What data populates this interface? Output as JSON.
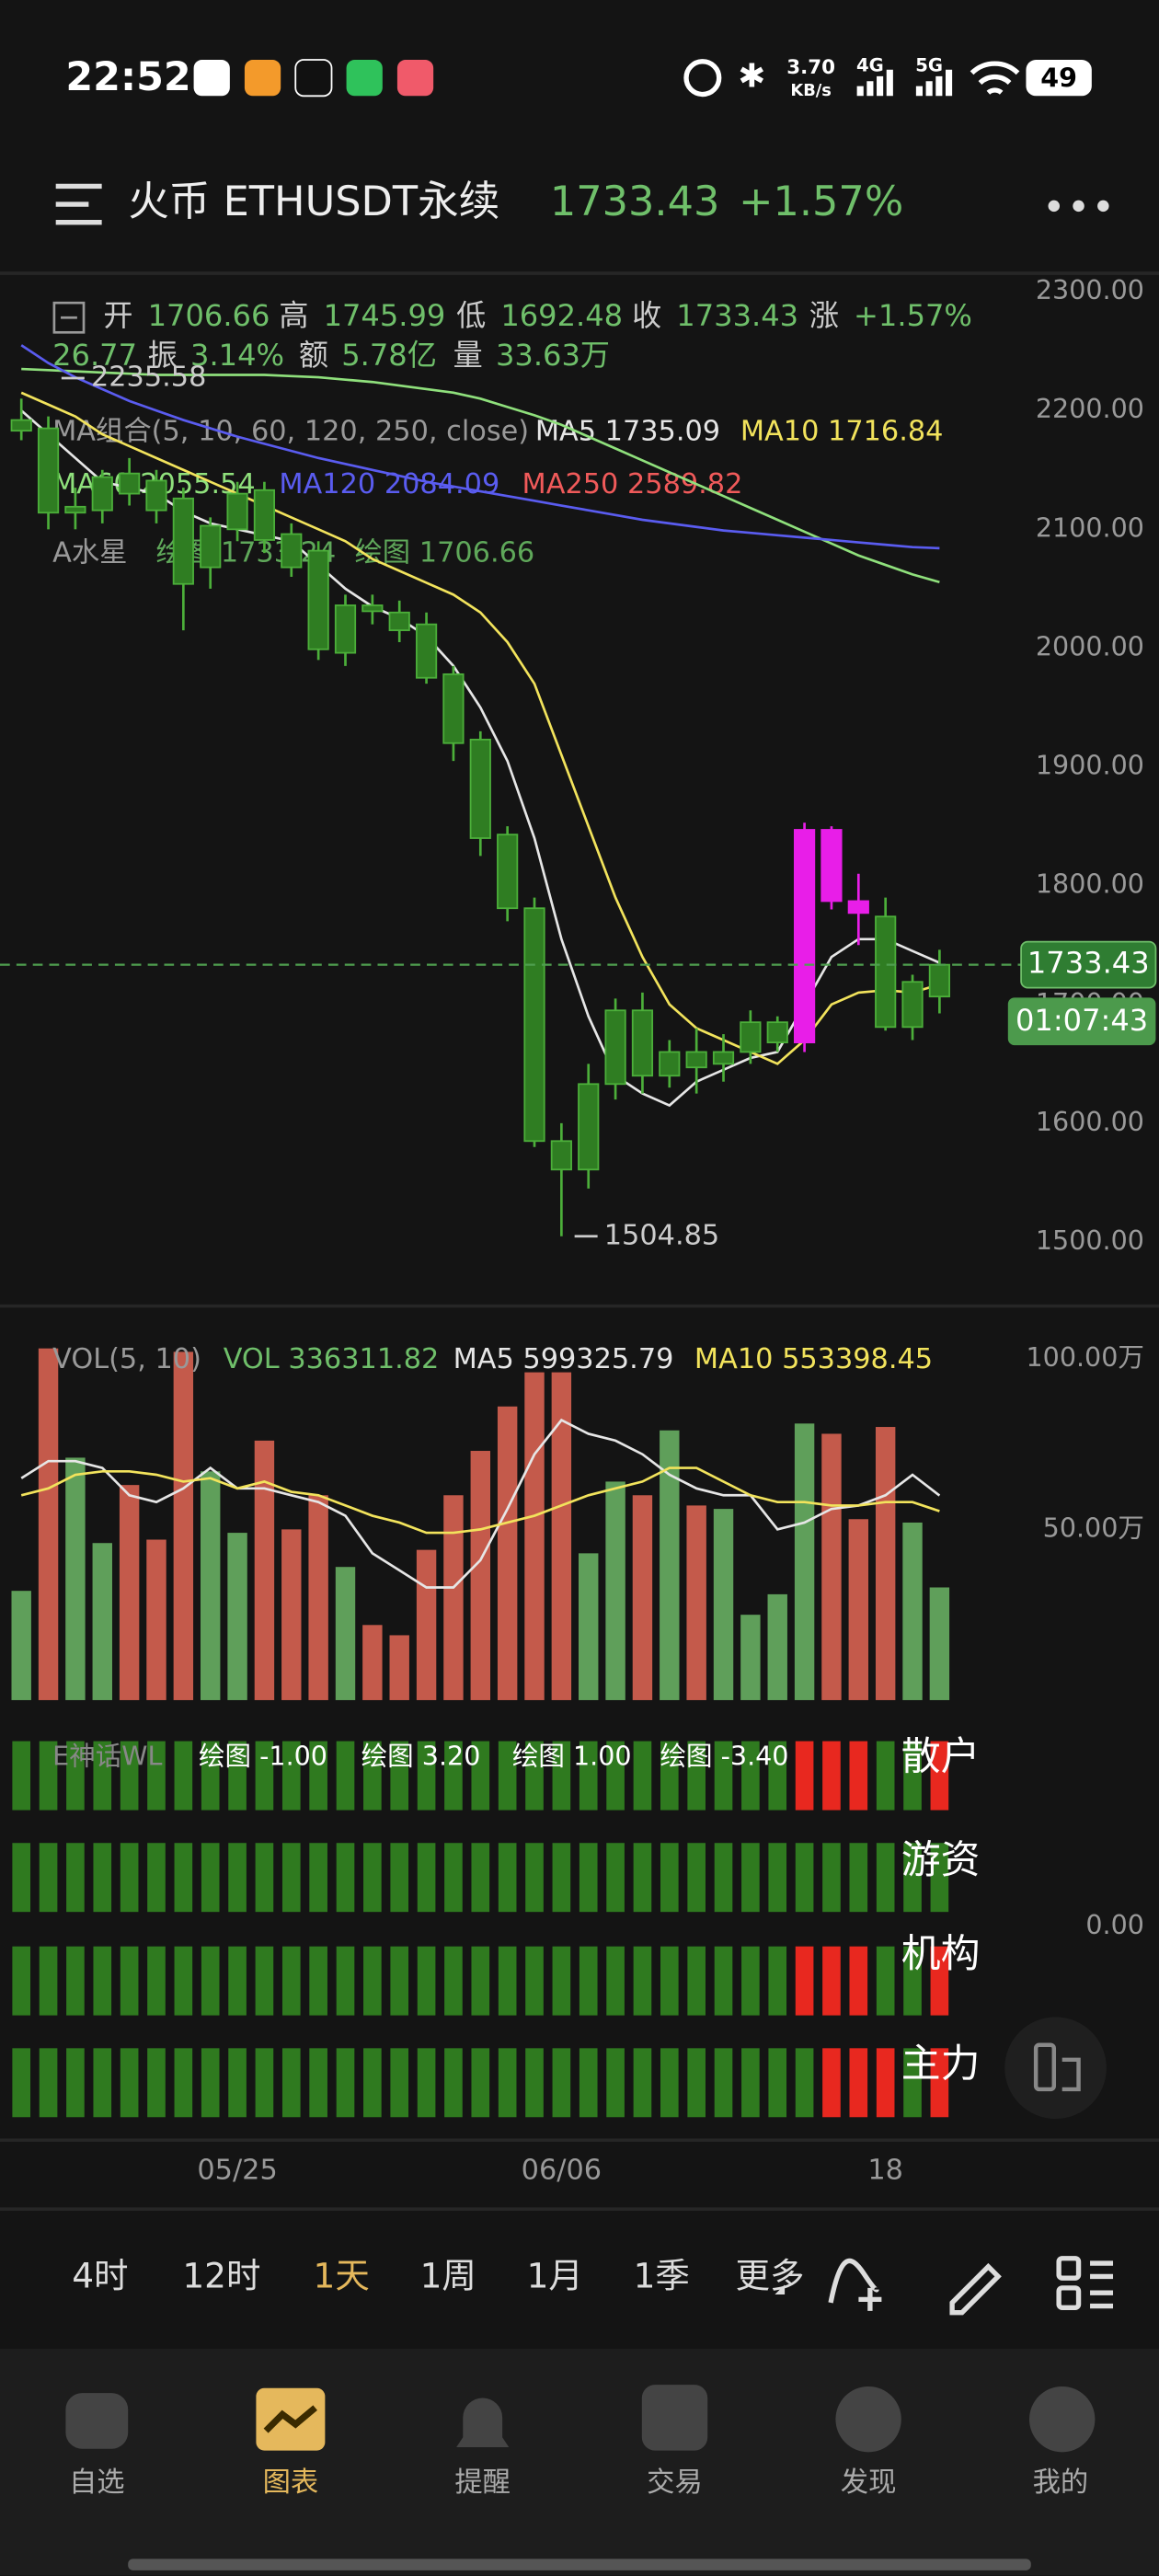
{
  "status_bar": {
    "time": "22:52",
    "speed": "3.70",
    "speed_unit": "KB/s",
    "net1": "4G",
    "net2": "5G",
    "battery": "49"
  },
  "header": {
    "title": "火币 ETHUSDT永续",
    "price": "1733.43",
    "change": "+1.57%"
  },
  "info": {
    "row1": [
      {
        "label": "开",
        "value": "1706.66"
      },
      {
        "label": "高",
        "value": "1745.99"
      },
      {
        "label": "低",
        "value": "1692.48"
      },
      {
        "label": "收",
        "value": "1733.43"
      },
      {
        "label": "涨",
        "value": "+1.57%"
      }
    ],
    "row2_lead": "26.77",
    "row2": [
      {
        "label": "振",
        "value": "3.14%"
      },
      {
        "label": "额",
        "value": "5.78亿"
      },
      {
        "label": "量",
        "value": "33.63万"
      }
    ],
    "ma_title": "MA组合(5, 10, 60, 120, 250, close)",
    "ma_labels": [
      {
        "text": "MA5 1735.09",
        "color": "#e6e6e6"
      },
      {
        "text": "MA10 1716.84",
        "color": "#f2e35c"
      },
      {
        "text": "MA60 2055.54",
        "color": "#8fe07c"
      },
      {
        "text": "MA120 2084.09",
        "color": "#5a5cf0"
      },
      {
        "text": "MA250 2589.82",
        "color": "#f05a5a"
      }
    ],
    "ind_title": "A水星",
    "ind_labels": [
      "绘图 1733.24",
      "绘图 1706.66"
    ]
  },
  "chart_data": [
    {
      "type": "candlestick",
      "categories": [
        null,
        null,
        null,
        null,
        null,
        null,
        null,
        null,
        "05/25",
        null,
        null,
        null,
        null,
        null,
        null,
        null,
        null,
        null,
        null,
        null,
        "06/06",
        null,
        null,
        null,
        null,
        null,
        null,
        null,
        null,
        null,
        null,
        null,
        "18",
        null,
        null
      ],
      "open": [
        2192,
        2185,
        2119,
        2144,
        2147,
        2141,
        2126,
        2103,
        2130,
        2133,
        2096,
        2082,
        2036,
        2036,
        2030,
        2020,
        1978,
        1923,
        1843,
        1781,
        1585,
        1633,
        1695,
        1695,
        1660,
        1660,
        1660,
        1685,
        1685,
        1668,
        1787,
        1777,
        1774,
        1719,
        1706.66
      ],
      "high": [
        2210,
        2195,
        2135,
        2150,
        2160,
        2150,
        2135,
        2110,
        2140,
        2140,
        2105,
        2090,
        2045,
        2045,
        2040,
        2030,
        1985,
        1930,
        1850,
        1790,
        1600,
        1650,
        1705,
        1710,
        1670,
        1680,
        1675,
        1695,
        1690,
        1853,
        1850,
        1810,
        1790,
        1725,
        1745.99
      ],
      "low": [
        2175,
        2100,
        2100,
        2105,
        2120,
        2105,
        2015,
        2050,
        2090,
        2080,
        2060,
        1990,
        1985,
        2020,
        2005,
        1970,
        1905,
        1825,
        1770,
        1580,
        1504.85,
        1545,
        1620,
        1625,
        1630,
        1625,
        1635,
        1650,
        1660,
        1660,
        1780,
        1750,
        1678,
        1670,
        1692.48
      ],
      "close": [
        2183,
        2114,
        2114,
        2116,
        2130,
        2116,
        2054,
        2068,
        2100,
        2091,
        2068,
        1999,
        1996,
        2031,
        2015,
        1975,
        1920,
        1840,
        1781,
        1585,
        1561,
        1561,
        1633,
        1640,
        1640,
        1647,
        1650,
        1660,
        1668,
        1847,
        1847,
        1787,
        1681,
        1681,
        1733.43
      ],
      "candle_colors": [
        "g",
        "g",
        "g",
        "g",
        "g",
        "g",
        "g",
        "g",
        "g",
        "g",
        "g",
        "g",
        "g",
        "g",
        "g",
        "g",
        "g",
        "g",
        "g",
        "g",
        "g",
        "g",
        "g",
        "g",
        "g",
        "g",
        "g",
        "g",
        "g",
        "m",
        "m",
        "m",
        "g",
        "g",
        "g"
      ],
      "palette": {
        "g": "#2f7d22",
        "m": "#e81ee8"
      },
      "ylim": [
        1453,
        2310
      ],
      "yticks": [
        {
          "value": 2300,
          "label": "2300.00"
        },
        {
          "value": 2200,
          "label": "2200.00"
        },
        {
          "value": 2100,
          "label": "2100.00"
        },
        {
          "value": 2000,
          "label": "2000.00"
        },
        {
          "value": 1900,
          "label": "1900.00"
        },
        {
          "value": 1800,
          "label": "1800.00"
        },
        {
          "value": 1700,
          "label": "1700.00"
        },
        {
          "value": 1600,
          "label": "1600.00"
        },
        {
          "value": 1500,
          "label": "1500.00"
        }
      ],
      "grid": false,
      "series": [
        {
          "color": "#e6e6e6",
          "values": [
            2200,
            2180,
            2160,
            2140,
            2135,
            2130,
            2115,
            2105,
            2100,
            2095,
            2090,
            2070,
            2050,
            2035,
            2025,
            2010,
            1985,
            1950,
            1905,
            1840,
            1755,
            1690,
            1640,
            1625,
            1615,
            1635,
            1645,
            1655,
            1660,
            1700,
            1740,
            1755,
            1755,
            1745,
            1735.09
          ]
        },
        {
          "color": "#f2e35c",
          "values": [
            2215,
            2205,
            2195,
            2180,
            2170,
            2160,
            2150,
            2140,
            2130,
            2120,
            2110,
            2100,
            2090,
            2075,
            2065,
            2055,
            2045,
            2030,
            2005,
            1970,
            1910,
            1850,
            1790,
            1740,
            1700,
            1680,
            1670,
            1660,
            1650,
            1670,
            1700,
            1710,
            1712,
            1710,
            1716.84
          ]
        },
        {
          "color": "#8fe07c",
          "values": [
            2235,
            2234,
            2233,
            2232,
            2231,
            2230,
            2230,
            2230,
            2230,
            2230,
            2229,
            2228,
            2226,
            2224,
            2221,
            2218,
            2215,
            2210,
            2203,
            2196,
            2188,
            2178,
            2168,
            2158,
            2148,
            2138,
            2128,
            2118,
            2108,
            2098,
            2088,
            2078,
            2070,
            2062,
            2055.54
          ]
        },
        {
          "color": "#5a5cf0",
          "values": [
            2255,
            2240,
            2228,
            2218,
            2208,
            2200,
            2192,
            2185,
            2178,
            2172,
            2166,
            2160,
            2155,
            2150,
            2145,
            2140,
            2136,
            2132,
            2128,
            2124,
            2120,
            2116,
            2112,
            2108,
            2105,
            2102,
            2099,
            2097,
            2095,
            2093,
            2091,
            2089,
            2087,
            2085,
            2084.09
          ]
        }
      ],
      "annotations": [
        {
          "value": 2235.58,
          "index": 1
        },
        {
          "value": 1504.85,
          "index": 20
        }
      ],
      "last_price": 1733.43,
      "countdown": "01:07:43"
    },
    {
      "type": "bar",
      "title": "VOL(5, 10)",
      "legend": [
        {
          "text": "VOL 336311.82",
          "color": "#6fbf6a"
        },
        {
          "text": "MA5 599325.79",
          "color": "#e6e6e6"
        },
        {
          "text": "MA10 553398.45",
          "color": "#f2e35c"
        }
      ],
      "values": [
        32,
        103,
        71,
        46,
        63,
        47,
        102,
        67,
        49,
        76,
        50,
        60,
        39,
        22,
        19,
        44,
        60,
        73,
        86,
        96,
        96,
        43,
        64,
        60,
        79,
        57,
        56,
        25,
        31,
        81,
        78,
        53,
        80,
        52,
        33
      ],
      "colors": [
        "g",
        "r",
        "g",
        "g",
        "r",
        "r",
        "r",
        "g",
        "g",
        "r",
        "r",
        "r",
        "g",
        "r",
        "r",
        "r",
        "r",
        "r",
        "r",
        "r",
        "r",
        "g",
        "g",
        "r",
        "g",
        "r",
        "g",
        "g",
        "g",
        "g",
        "r",
        "r",
        "r",
        "g",
        "g"
      ],
      "palette": {
        "g": "#5f9f5a",
        "r": "#c45a4b"
      },
      "ylim": [
        0,
        113
      ],
      "yticks": [
        {
          "value": 100,
          "label": "100.00万"
        },
        {
          "value": 50,
          "label": "50.00万"
        }
      ],
      "series": [
        {
          "color": "#e6e6e6",
          "values": [
            65,
            70,
            70,
            68,
            60,
            58,
            62,
            68,
            62,
            62,
            60,
            58,
            54,
            43,
            38,
            33,
            33,
            41,
            56,
            72,
            82,
            78,
            76,
            72,
            66,
            62,
            60,
            60,
            50,
            52,
            56,
            57,
            60,
            66,
            59.93
          ]
        },
        {
          "color": "#f2e35c",
          "values": [
            60,
            62,
            66,
            67,
            67,
            66,
            64,
            65,
            62,
            64,
            61,
            60,
            57,
            54,
            52,
            49,
            49,
            50,
            52,
            54,
            57,
            60,
            62,
            64,
            68,
            68,
            64,
            60,
            58,
            58,
            57,
            57,
            58,
            58,
            55.34
          ]
        }
      ]
    },
    {
      "type": "signal-grid",
      "title": "E神话WL",
      "labels": [
        "绘图 -1.00",
        "绘图 3.20",
        "绘图 1.00",
        "绘图 -3.40"
      ],
      "axis_label": "0.00",
      "palette": {
        "g": "#2f7a1f",
        "r": "#e8281f"
      },
      "rows": [
        {
          "name": "散户",
          "colors": [
            "g",
            "g",
            "g",
            "g",
            "g",
            "g",
            "g",
            "g",
            "g",
            "g",
            "g",
            "g",
            "g",
            "g",
            "g",
            "g",
            "g",
            "g",
            "g",
            "g",
            "g",
            "g",
            "g",
            "g",
            "g",
            "g",
            "g",
            "g",
            "g",
            "r",
            "r",
            "r",
            "g",
            "g",
            "r"
          ]
        },
        {
          "name": "游资",
          "colors": [
            "g",
            "g",
            "g",
            "g",
            "g",
            "g",
            "g",
            "g",
            "g",
            "g",
            "g",
            "g",
            "g",
            "g",
            "g",
            "g",
            "g",
            "g",
            "g",
            "g",
            "g",
            "g",
            "g",
            "g",
            "g",
            "g",
            "g",
            "g",
            "g",
            "g",
            "g",
            "g",
            "g",
            "g",
            "g"
          ]
        },
        {
          "name": "机构",
          "colors": [
            "g",
            "g",
            "g",
            "g",
            "g",
            "g",
            "g",
            "g",
            "g",
            "g",
            "g",
            "g",
            "g",
            "g",
            "g",
            "g",
            "g",
            "g",
            "g",
            "g",
            "g",
            "g",
            "g",
            "g",
            "g",
            "g",
            "g",
            "g",
            "g",
            "r",
            "r",
            "r",
            "g",
            "g",
            "r"
          ]
        },
        {
          "name": "主力",
          "colors": [
            "g",
            "g",
            "g",
            "g",
            "g",
            "g",
            "g",
            "g",
            "g",
            "g",
            "g",
            "g",
            "g",
            "g",
            "g",
            "g",
            "g",
            "g",
            "g",
            "g",
            "g",
            "g",
            "g",
            "g",
            "g",
            "g",
            "g",
            "g",
            "g",
            "g",
            "r",
            "r",
            "r",
            "g",
            "r"
          ]
        }
      ]
    }
  ],
  "timeframes": {
    "items": [
      "4时",
      "12时",
      "1天",
      "1周",
      "1月",
      "1季",
      "更多"
    ],
    "selected": 2
  },
  "nav": {
    "items": [
      "自选",
      "图表",
      "提醒",
      "交易",
      "发现",
      "我的"
    ],
    "selected": 1
  }
}
